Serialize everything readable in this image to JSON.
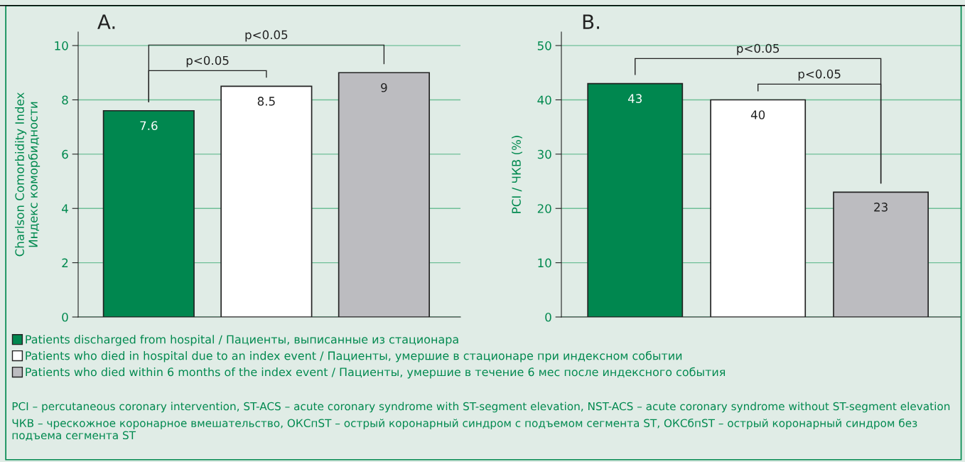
{
  "chart_data": [
    {
      "type": "bar",
      "title": "A.",
      "ylabel": "Charlson Comorbidity Index\nИндекс коморбидности",
      "categories": [
        null,
        null,
        null
      ],
      "series": [
        {
          "name": "Patients discharged from hospital / Пациенты, выписанные из стационара",
          "color": "#00874f",
          "values": [
            7.6,
            null,
            null
          ]
        },
        {
          "name": "Patients who died in hospital due to an index event / Пациенты, умершие в стационаре при индексном событии",
          "color": "#ffffff",
          "values": [
            null,
            8.5,
            null
          ]
        },
        {
          "name": "Patients who died within 6 months of the index event / Пациенты, умершие в течение 6 мес после индексного события",
          "color": "#bcbcc0",
          "values": [
            null,
            null,
            9
          ]
        }
      ],
      "ylim": [
        0,
        10.5
      ],
      "yticks": [
        0,
        2,
        4,
        6,
        8,
        10
      ],
      "grid": "y",
      "legend": "bottom",
      "data_labels": true,
      "annotations": [
        "p<0.05",
        "p<0.05"
      ]
    },
    {
      "type": "bar",
      "title": "B.",
      "ylabel": "PCI / ЧКВ (%)",
      "categories": [
        null,
        null,
        null
      ],
      "series": [
        {
          "color": "#00874f",
          "values": [
            43,
            null,
            null
          ]
        },
        {
          "color": "#ffffff",
          "values": [
            null,
            40,
            null
          ]
        },
        {
          "color": "#bcbcc0",
          "values": [
            null,
            null,
            23
          ]
        }
      ],
      "ylim": [
        0,
        52.5
      ],
      "yticks": [
        0,
        10,
        20,
        30,
        40,
        50
      ],
      "grid": "y",
      "data_labels": true,
      "annotations": [
        "p<0.05",
        "p<0.05",
        "PCI – percutaneous coronary intervention, ST-ACS – acute coronary syndrome with ST-segment elevation, NST-ACS – acute coronary syndrome without ST-segment elevation",
        "ЧКВ – чрескожное коронарное вмешательство, ОКСпST – острый коронарный синдром с подъемом сегмента ST, ОКСбпST – острый коронарный синдром без подъема сегмента ST"
      ]
    }
  ]
}
